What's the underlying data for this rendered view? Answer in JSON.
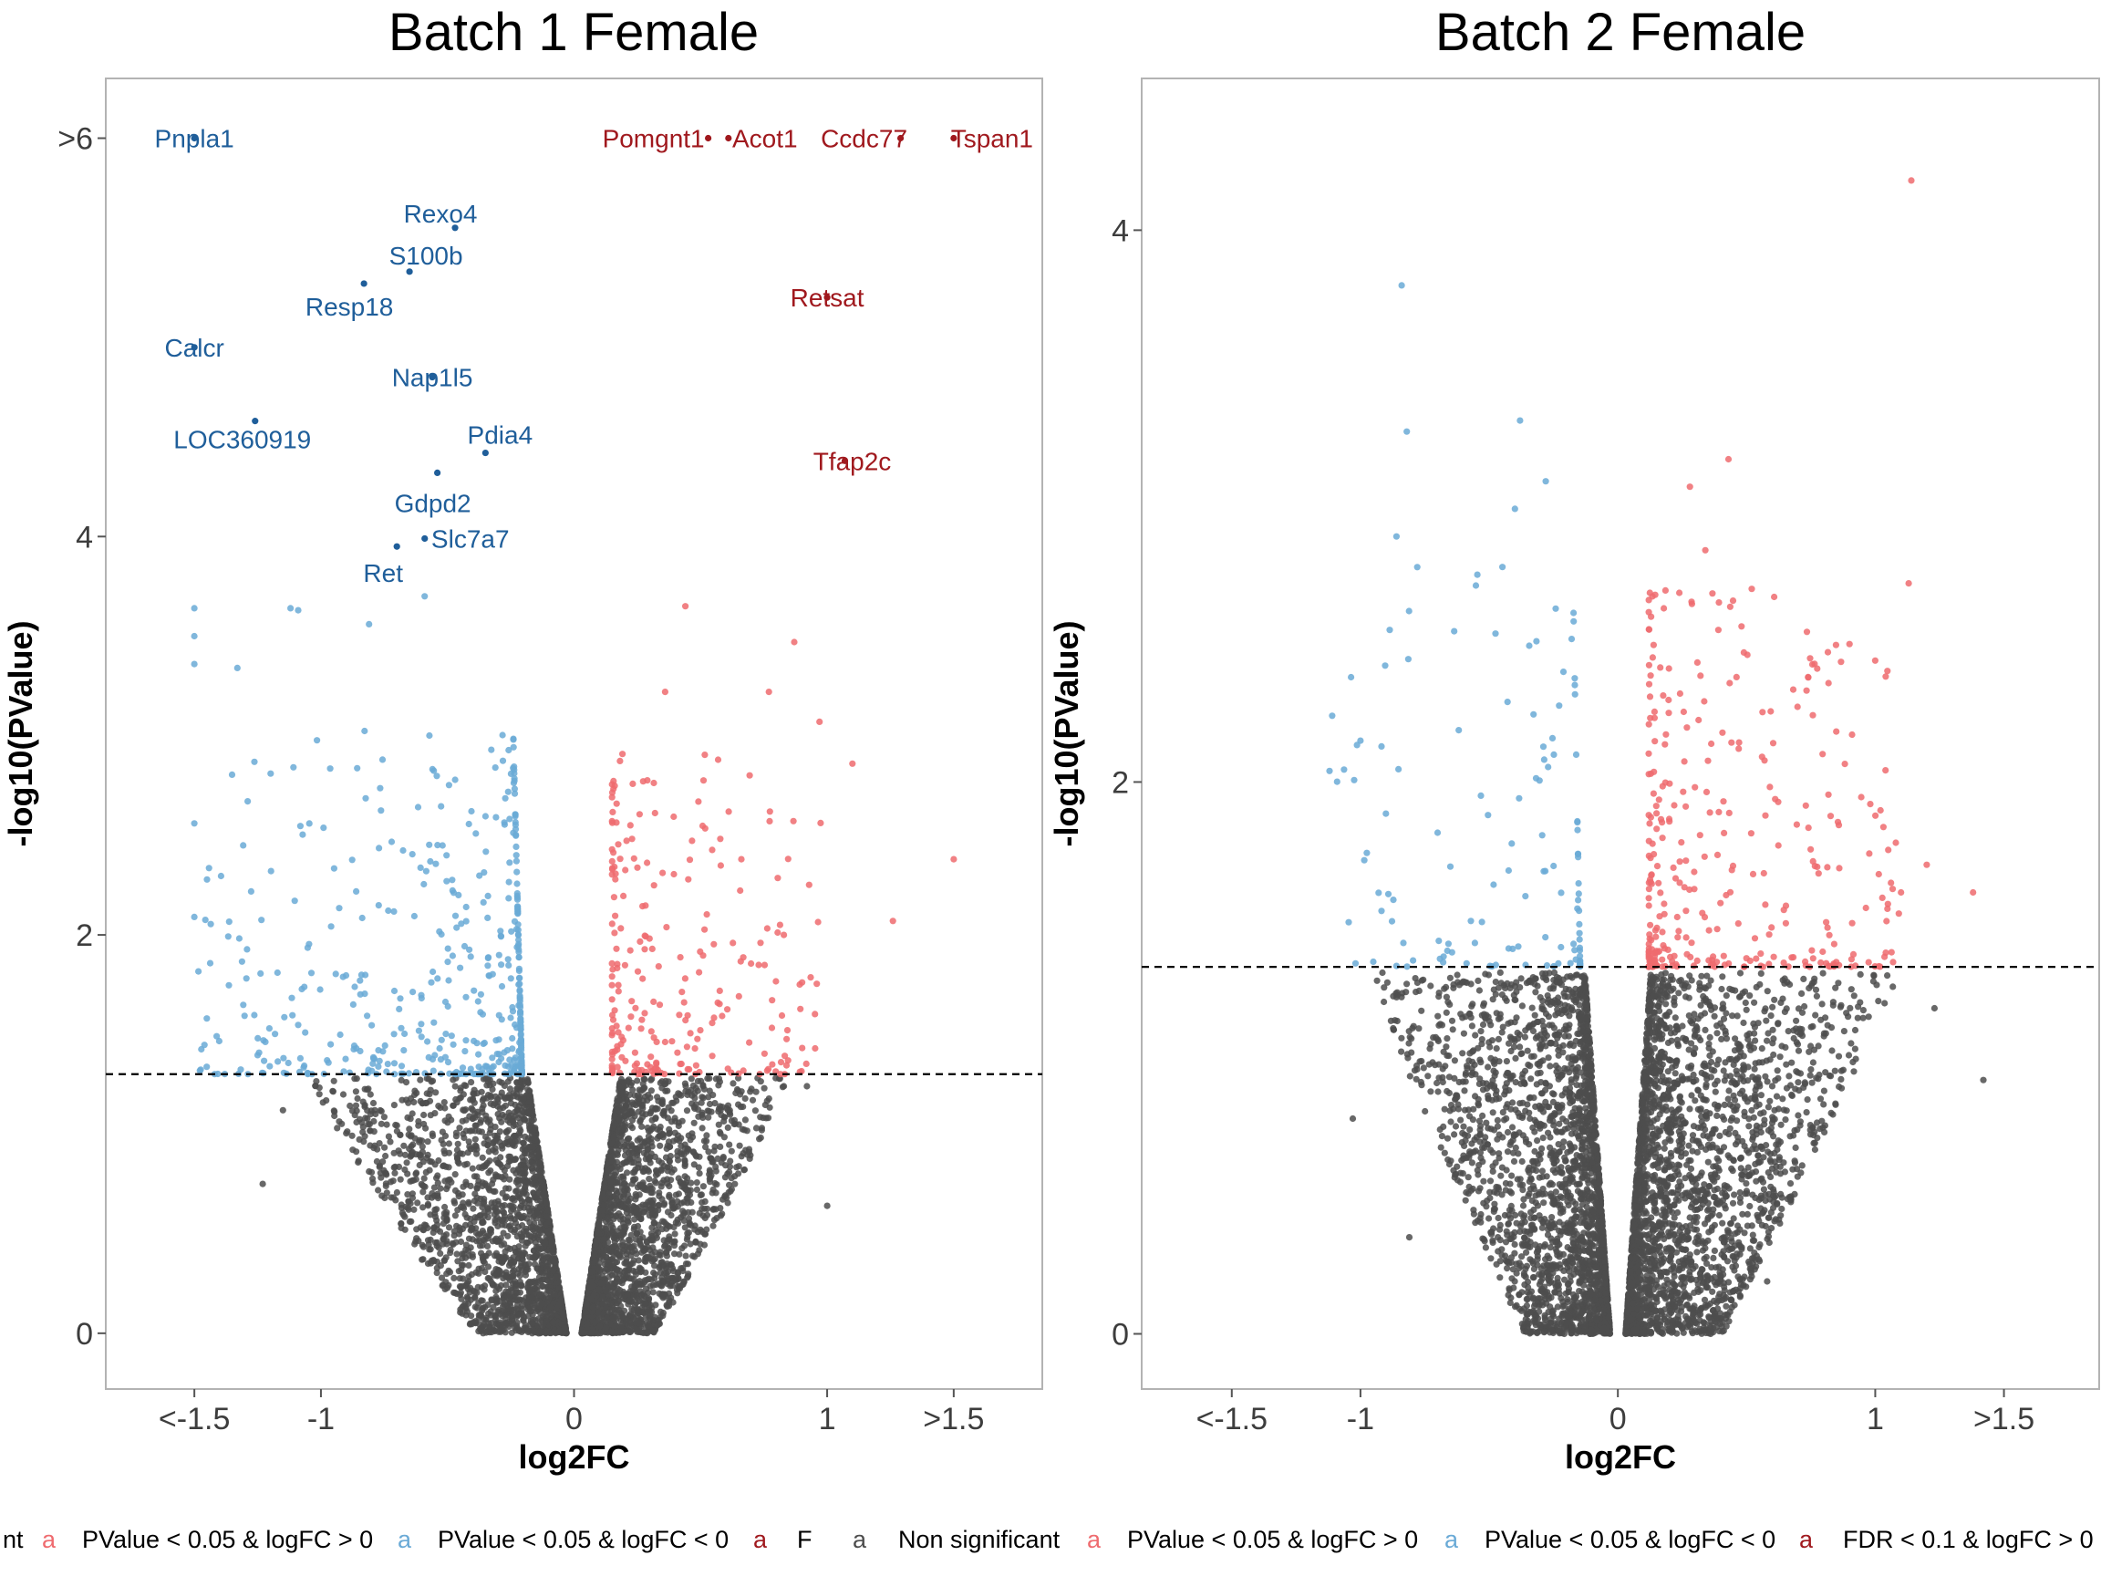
{
  "chart_data": [
    {
      "type": "scatter",
      "title": "Batch 1 Female",
      "xlabel": "log2FC",
      "ylabel": "-log10(PValue)",
      "xlim": [
        -1.85,
        1.85
      ],
      "ylim": [
        -0.28,
        6.3
      ],
      "x_ticks": [
        {
          "value": -1.5,
          "label": "<-1.5"
        },
        {
          "value": -1,
          "label": "-1"
        },
        {
          "value": 0,
          "label": "0"
        },
        {
          "value": 1,
          "label": "1"
        },
        {
          "value": 1.5,
          "label": ">1.5"
        }
      ],
      "y_ticks": [
        {
          "value": 0,
          "label": "0"
        },
        {
          "value": 2,
          "label": "2"
        },
        {
          "value": 4,
          "label": "4"
        },
        {
          "value": 6,
          "label": ">6"
        }
      ],
      "threshold_y": 1.301,
      "labeled_points": [
        {
          "gene": "Pnpla1",
          "x": -1.5,
          "y": 6.0,
          "group": "down_fdr"
        },
        {
          "gene": "Rexo4",
          "x": -0.47,
          "y": 5.55,
          "group": "down_fdr"
        },
        {
          "gene": "S100b",
          "x": -0.65,
          "y": 5.33,
          "group": "down_fdr"
        },
        {
          "gene": "Resp18",
          "x": -0.83,
          "y": 5.27,
          "group": "down_fdr"
        },
        {
          "gene": "Calcr",
          "x": -1.5,
          "y": 4.95,
          "group": "down_fdr"
        },
        {
          "gene": "Nap1l5",
          "x": -0.56,
          "y": 4.8,
          "group": "down_fdr"
        },
        {
          "gene": "LOC360919",
          "x": -1.26,
          "y": 4.58,
          "group": "down_fdr"
        },
        {
          "gene": "Pdia4",
          "x": -0.35,
          "y": 4.42,
          "group": "down_fdr"
        },
        {
          "gene": "Gdpd2",
          "x": -0.54,
          "y": 4.32,
          "group": "down_fdr"
        },
        {
          "gene": "Slc7a7",
          "x": -0.59,
          "y": 3.99,
          "group": "down_fdr"
        },
        {
          "gene": "Ret",
          "x": -0.7,
          "y": 3.95,
          "group": "down_fdr"
        },
        {
          "gene": "Pomgnt1",
          "x": 0.53,
          "y": 6.0,
          "group": "up_fdr"
        },
        {
          "gene": "Acot1",
          "x": 0.61,
          "y": 6.0,
          "group": "up_fdr"
        },
        {
          "gene": "Ccdc77",
          "x": 1.29,
          "y": 6.0,
          "group": "up_fdr"
        },
        {
          "gene": "Tspan1",
          "x": 1.5,
          "y": 6.0,
          "group": "up_fdr"
        },
        {
          "gene": "Retsat",
          "x": 1.0,
          "y": 5.2,
          "group": "up_fdr"
        },
        {
          "gene": "Tfap2c",
          "x": 1.07,
          "y": 4.38,
          "group": "up_fdr"
        }
      ],
      "extra_points": [
        {
          "x": -1.5,
          "y": 3.64,
          "group": "down"
        },
        {
          "x": -1.5,
          "y": 3.5,
          "group": "down"
        },
        {
          "x": -1.5,
          "y": 3.36,
          "group": "down"
        },
        {
          "x": -1.33,
          "y": 3.34,
          "group": "down"
        },
        {
          "x": -1.5,
          "y": 2.56,
          "group": "down"
        },
        {
          "x": -1.5,
          "y": 2.09,
          "group": "down"
        },
        {
          "x": -1.12,
          "y": 3.64,
          "group": "down"
        },
        {
          "x": -1.09,
          "y": 3.63,
          "group": "down"
        },
        {
          "x": -0.81,
          "y": 3.56,
          "group": "down"
        },
        {
          "x": -0.59,
          "y": 3.7,
          "group": "down"
        },
        {
          "x": 0.44,
          "y": 3.65,
          "group": "up"
        },
        {
          "x": 0.87,
          "y": 3.47,
          "group": "up"
        },
        {
          "x": 0.36,
          "y": 3.22,
          "group": "up"
        },
        {
          "x": 0.77,
          "y": 3.22,
          "group": "up"
        },
        {
          "x": 0.97,
          "y": 3.07,
          "group": "up"
        },
        {
          "x": 1.1,
          "y": 2.86,
          "group": "up"
        },
        {
          "x": 1.26,
          "y": 2.07,
          "group": "up"
        },
        {
          "x": 1.5,
          "y": 2.38,
          "group": "up"
        },
        {
          "x": -1.23,
          "y": 0.75,
          "group": "ns"
        },
        {
          "x": 1.0,
          "y": 0.64,
          "group": "ns"
        },
        {
          "x": -1.15,
          "y": 1.12,
          "group": "ns"
        },
        {
          "x": 0.92,
          "y": 1.24,
          "group": "ns"
        }
      ],
      "point_clouds": {
        "ns_left_x_range": [
          -1.25,
          0
        ],
        "ns_right_x_range": [
          0,
          1.0
        ],
        "down_x_range": [
          -1.5,
          -0.18
        ],
        "up_x_range": [
          0.15,
          1.0
        ],
        "y_range_significant": [
          1.301,
          3.6
        ]
      }
    },
    {
      "type": "scatter",
      "title": "Batch 2 Female",
      "xlabel": "log2FC",
      "ylabel": "-log10(PValue)",
      "xlim": [
        -1.85,
        1.87
      ],
      "ylim": [
        -0.2,
        4.55
      ],
      "x_ticks": [
        {
          "value": -1.5,
          "label": "<-1.5"
        },
        {
          "value": -1,
          "label": "-1"
        },
        {
          "value": 0,
          "label": "0"
        },
        {
          "value": 1,
          "label": "1"
        },
        {
          "value": 1.5,
          "label": ">1.5"
        }
      ],
      "y_ticks": [
        {
          "value": 0,
          "label": "0"
        },
        {
          "value": 2,
          "label": "2"
        },
        {
          "value": 4,
          "label": "4"
        }
      ],
      "threshold_y": 1.33,
      "labeled_points": [],
      "extra_points": [
        {
          "x": 1.14,
          "y": 4.18,
          "group": "up"
        },
        {
          "x": -0.84,
          "y": 3.8,
          "group": "down"
        },
        {
          "x": -0.82,
          "y": 3.27,
          "group": "down"
        },
        {
          "x": -0.38,
          "y": 3.31,
          "group": "down"
        },
        {
          "x": -0.28,
          "y": 3.09,
          "group": "down"
        },
        {
          "x": -0.4,
          "y": 2.99,
          "group": "down"
        },
        {
          "x": -0.86,
          "y": 2.89,
          "group": "down"
        },
        {
          "x": 0.43,
          "y": 3.17,
          "group": "up"
        },
        {
          "x": 0.28,
          "y": 3.07,
          "group": "up"
        },
        {
          "x": 0.34,
          "y": 2.84,
          "group": "up"
        },
        {
          "x": 1.13,
          "y": 2.72,
          "group": "up"
        },
        {
          "x": 0.52,
          "y": 2.7,
          "group": "up"
        },
        {
          "x": 1.0,
          "y": 2.44,
          "group": "up"
        },
        {
          "x": 0.9,
          "y": 2.5,
          "group": "up"
        },
        {
          "x": -1.11,
          "y": 2.24,
          "group": "down"
        },
        {
          "x": -1.12,
          "y": 2.04,
          "group": "down"
        },
        {
          "x": -1.0,
          "y": 2.15,
          "group": "down"
        },
        {
          "x": 1.1,
          "y": 1.6,
          "group": "up"
        },
        {
          "x": 1.38,
          "y": 1.6,
          "group": "up"
        },
        {
          "x": 1.2,
          "y": 1.7,
          "group": "up"
        },
        {
          "x": 1.08,
          "y": 1.78,
          "group": "up"
        },
        {
          "x": 1.42,
          "y": 0.92,
          "group": "ns"
        },
        {
          "x": 1.23,
          "y": 1.18,
          "group": "ns"
        },
        {
          "x": -1.03,
          "y": 0.78,
          "group": "ns"
        },
        {
          "x": 0.58,
          "y": 0.19,
          "group": "ns"
        },
        {
          "x": -0.81,
          "y": 0.35,
          "group": "ns"
        }
      ],
      "point_clouds": {
        "ns_left_x_range": [
          -1.15,
          0
        ],
        "ns_right_x_range": [
          0,
          1.3
        ],
        "down_x_range": [
          -1.1,
          -0.12
        ],
        "up_x_range": [
          0.12,
          1.1
        ],
        "y_range_significant": [
          1.33,
          3.3
        ]
      }
    }
  ],
  "legend": {
    "items": [
      {
        "marker": "a",
        "label": "nt",
        "color": "#4d4d4d",
        "marker_hidden": true
      },
      {
        "marker": "a",
        "label": "PValue < 0.05 & logFC > 0",
        "color": "#ef6b6f"
      },
      {
        "marker": "a",
        "label": "PValue < 0.05 & logFC < 0",
        "color": "#6aaad6"
      },
      {
        "marker": "a",
        "label": "F",
        "color": "#a0191e"
      },
      {
        "marker": "a",
        "label": "Non significant",
        "color": "#4d4d4d"
      },
      {
        "marker": "a",
        "label": "PValue < 0.05 & logFC > 0",
        "color": "#ef6b6f"
      },
      {
        "marker": "a",
        "label": "PValue < 0.05 & logFC < 0",
        "color": "#6aaad6"
      },
      {
        "marker": "a",
        "label": "FDR < 0.1 & logFC > 0",
        "color": "#a0191e"
      }
    ]
  },
  "colors": {
    "non_significant": "#4d4d4d",
    "up": "#ef6b6f",
    "down": "#6aaad6",
    "up_fdr": "#a0191e",
    "down_fdr": "#1f5e9a",
    "panel_border": "#b3b3b3",
    "threshold_line": "#000000"
  }
}
